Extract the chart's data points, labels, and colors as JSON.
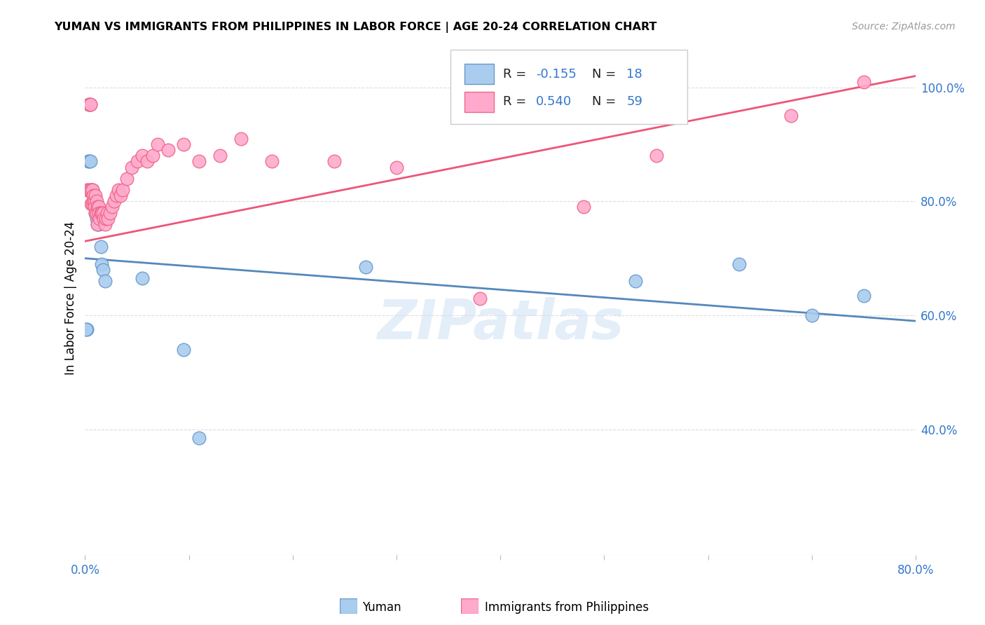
{
  "title": "YUMAN VS IMMIGRANTS FROM PHILIPPINES IN LABOR FORCE | AGE 20-24 CORRELATION CHART",
  "source": "Source: ZipAtlas.com",
  "ylabel": "In Labor Force | Age 20-24",
  "xlim": [
    0.0,
    0.8
  ],
  "ylim": [
    0.18,
    1.08
  ],
  "yticks": [
    0.4,
    0.6,
    0.8,
    1.0
  ],
  "ytick_labels": [
    "40.0%",
    "60.0%",
    "80.0%",
    "100.0%"
  ],
  "xticks": [
    0.0,
    0.1,
    0.2,
    0.3,
    0.4,
    0.5,
    0.6,
    0.7,
    0.8
  ],
  "xtick_show": [
    "0.0%",
    "",
    "",
    "",
    "",
    "",
    "",
    "",
    "80.0%"
  ],
  "watermark": "ZIPatlas",
  "blue_color": "#aaccee",
  "pink_color": "#ffaacc",
  "blue_edge_color": "#6699cc",
  "pink_edge_color": "#ee6688",
  "blue_line_color": "#5588bb",
  "pink_line_color": "#ee5577",
  "axis_color": "#bbbbbb",
  "tick_color": "#3377cc",
  "grid_color": "#dddddd",
  "background_color": "#ffffff",
  "blue_scatter_x": [
    0.002,
    0.003,
    0.004,
    0.005,
    0.006,
    0.007,
    0.008,
    0.009,
    0.01,
    0.011,
    0.012,
    0.013,
    0.015,
    0.016,
    0.017,
    0.019,
    0.095,
    0.27
  ],
  "blue_scatter_y": [
    0.575,
    0.87,
    0.87,
    0.87,
    0.82,
    0.82,
    0.8,
    0.8,
    0.78,
    0.77,
    0.76,
    0.76,
    0.72,
    0.69,
    0.68,
    0.66,
    0.54,
    0.685
  ],
  "pink_scatter_x": [
    0.002,
    0.003,
    0.004,
    0.004,
    0.005,
    0.005,
    0.005,
    0.006,
    0.006,
    0.007,
    0.007,
    0.008,
    0.008,
    0.009,
    0.009,
    0.01,
    0.01,
    0.011,
    0.011,
    0.012,
    0.012,
    0.013,
    0.013,
    0.014,
    0.015,
    0.016,
    0.017,
    0.018,
    0.019,
    0.02,
    0.021,
    0.022,
    0.024,
    0.026,
    0.028,
    0.03,
    0.032,
    0.034,
    0.036,
    0.04,
    0.045,
    0.05,
    0.055,
    0.06,
    0.065,
    0.07,
    0.08,
    0.095,
    0.11,
    0.13,
    0.15,
    0.18,
    0.24,
    0.3,
    0.38,
    0.48,
    0.55,
    0.68,
    0.75
  ],
  "pink_scatter_y": [
    0.82,
    0.82,
    0.97,
    0.97,
    0.97,
    0.97,
    0.82,
    0.82,
    0.795,
    0.82,
    0.795,
    0.81,
    0.8,
    0.8,
    0.79,
    0.81,
    0.78,
    0.8,
    0.78,
    0.79,
    0.76,
    0.79,
    0.78,
    0.77,
    0.78,
    0.78,
    0.78,
    0.77,
    0.76,
    0.77,
    0.78,
    0.77,
    0.78,
    0.79,
    0.8,
    0.81,
    0.82,
    0.81,
    0.82,
    0.84,
    0.86,
    0.87,
    0.88,
    0.87,
    0.88,
    0.9,
    0.89,
    0.9,
    0.87,
    0.88,
    0.91,
    0.87,
    0.87,
    0.86,
    0.63,
    0.79,
    0.88,
    0.95,
    1.01
  ],
  "blue_scatter_x2": [
    0.001,
    0.055,
    0.11,
    0.53,
    0.63,
    0.7,
    0.75
  ],
  "blue_scatter_y2": [
    0.575,
    0.665,
    0.385,
    0.66,
    0.69,
    0.6,
    0.635
  ],
  "blue_line_x": [
    0.0,
    0.8
  ],
  "blue_line_y": [
    0.7,
    0.59
  ],
  "pink_line_x": [
    0.0,
    0.8
  ],
  "pink_line_y": [
    0.73,
    1.02
  ],
  "legend_blue_r": "-0.155",
  "legend_blue_n": "18",
  "legend_pink_r": "0.540",
  "legend_pink_n": "59",
  "legend_blue_label": "Yuman",
  "legend_pink_label": "Immigrants from Philippines"
}
